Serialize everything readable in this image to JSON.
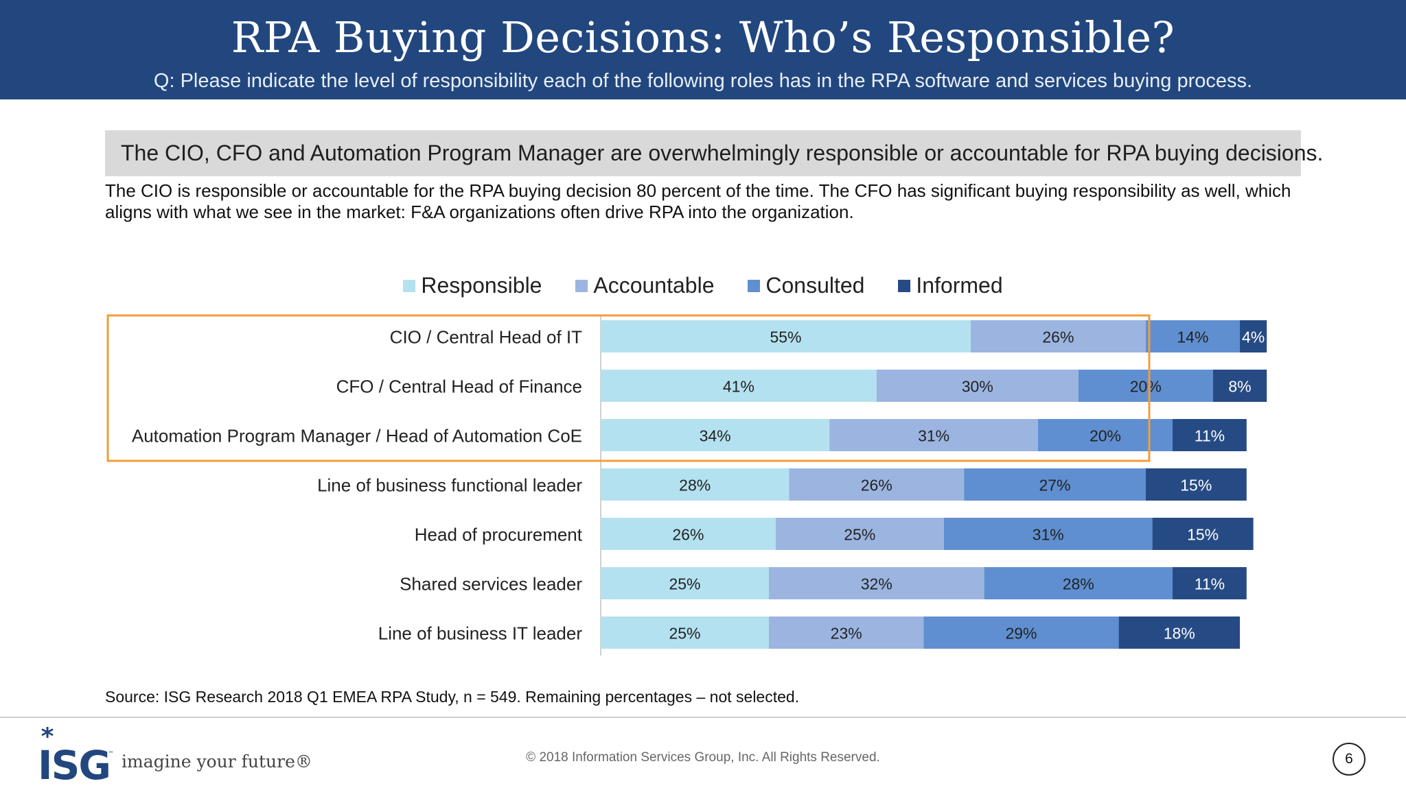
{
  "header": {
    "title": "RPA Buying Decisions: Who’s Responsible?",
    "subtitle": "Q: Please indicate the level of responsibility each of the following roles has in the RPA software and services buying process."
  },
  "callout": "The CIO, CFO and Automation Program Manager are overwhelmingly responsible or accountable for RPA buying decisions.",
  "body_text": "The CIO is responsible or accountable for the RPA buying decision 80 percent of the time. The CFO has significant buying responsibility as well, which aligns with what we see in the market: F&A organizations often drive RPA into the organization.",
  "source": "Source: ISG Research 2018 Q1 EMEA RPA Study, n = 549. Remaining percentages – not selected.",
  "footer": {
    "logo_text": "ISG",
    "tagline": "imagine your future®",
    "copyright": "© 2018 Information Services Group, Inc.  All Rights Reserved.",
    "page_number": "6"
  },
  "colors": {
    "header_bg": "#22477e",
    "responsible": "#b4e1ef",
    "accountable": "#9bb5e0",
    "consulted": "#5f8fd0",
    "informed": "#264b84",
    "highlight_box": "#f39c3a",
    "callout_bg": "#d9d9d9"
  },
  "chart_data": {
    "type": "bar",
    "orientation": "horizontal",
    "stacked": true,
    "categories": [
      "CIO / Central Head of IT",
      "CFO / Central Head of Finance",
      "Automation Program Manager / Head of Automation CoE",
      "Line of business functional leader",
      "Head of procurement",
      "Shared services leader",
      "Line of business IT leader"
    ],
    "series": [
      {
        "name": "Responsible",
        "color": "#b4e1ef",
        "values": [
          55,
          41,
          34,
          28,
          26,
          25,
          25
        ],
        "labels": [
          "55%",
          "41%",
          "34%",
          "28%",
          "26%",
          "25%",
          "25%"
        ]
      },
      {
        "name": "Accountable",
        "color": "#9bb5e0",
        "values": [
          26,
          30,
          31,
          26,
          25,
          32,
          23
        ],
        "labels": [
          "26%",
          "30%",
          "31%",
          "26%",
          "25%",
          "32%",
          "23%"
        ]
      },
      {
        "name": "Consulted",
        "color": "#5f8fd0",
        "values": [
          14,
          20,
          20,
          27,
          31,
          28,
          29
        ],
        "labels": [
          "14%",
          "20%",
          "20%",
          "27%",
          "31%",
          "28%",
          "29%"
        ]
      },
      {
        "name": "Informed",
        "color": "#264b84",
        "values": [
          4,
          8,
          11,
          15,
          15,
          11,
          18
        ],
        "labels": [
          "4%",
          "8%",
          "11%",
          "15%",
          "15%",
          "11%",
          "18%"
        ]
      }
    ],
    "xlim": [
      0,
      100
    ],
    "legend_position": "top",
    "grid": false,
    "highlighted_categories": [
      "CIO / Central Head of IT",
      "CFO / Central Head of Finance",
      "Automation Program Manager / Head of Automation CoE"
    ]
  }
}
